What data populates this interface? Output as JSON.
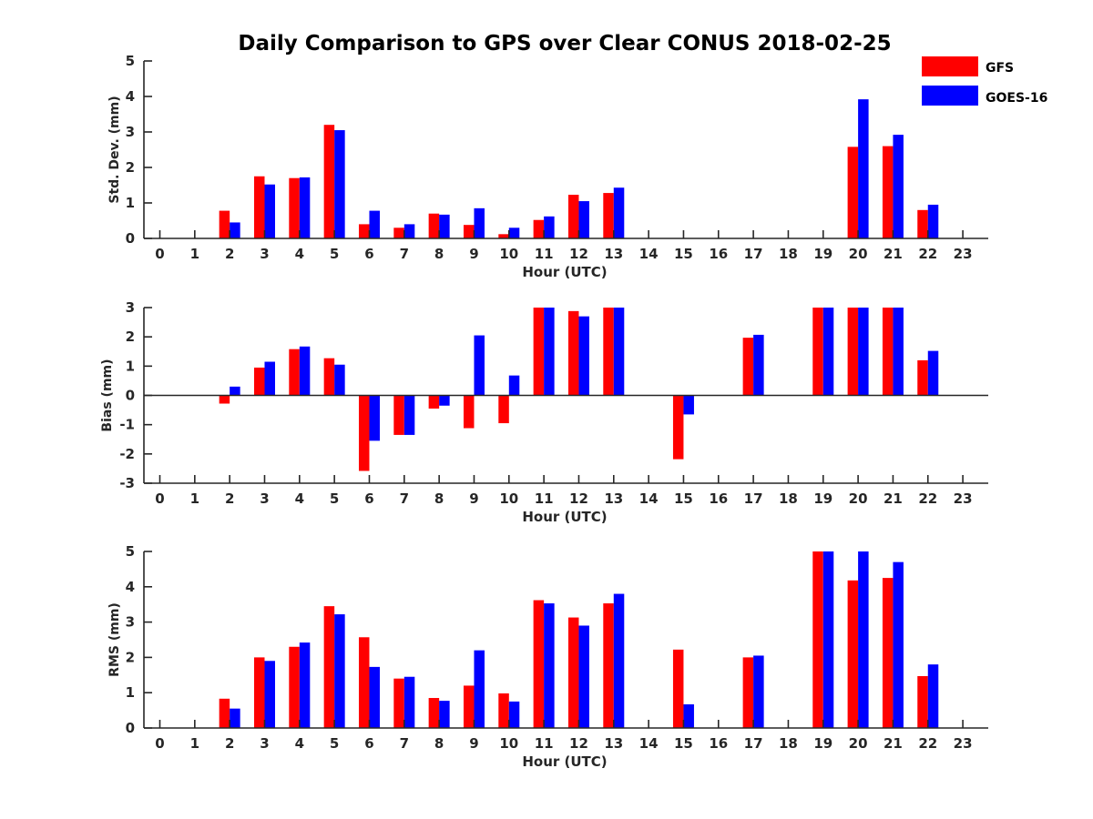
{
  "colors": {
    "gfs": "#ff0000",
    "goes": "#0000ff",
    "axis": "#262626"
  },
  "chart_data": {
    "type": "bar",
    "title": "Daily Comparison to GPS over Clear CONUS 2018-02-25",
    "legend": {
      "placement": "top-right",
      "entries": [
        "GFS",
        "GOES-16"
      ]
    },
    "categories": [
      "0",
      "1",
      "2",
      "3",
      "4",
      "5",
      "6",
      "7",
      "8",
      "9",
      "10",
      "11",
      "12",
      "13",
      "14",
      "15",
      "16",
      "17",
      "18",
      "19",
      "20",
      "21",
      "22",
      "23"
    ],
    "panels": [
      {
        "key": "std",
        "ylabel": "Std. Dev. (mm)",
        "xlabel": "Hour (UTC)",
        "ylim": [
          0,
          5
        ],
        "yticks": [
          "0",
          "1",
          "2",
          "3",
          "4",
          "5"
        ],
        "series": [
          {
            "name": "GFS",
            "values": [
              null,
              null,
              0.78,
              1.75,
              1.7,
              3.2,
              0.4,
              0.3,
              0.7,
              0.38,
              0.12,
              0.52,
              1.23,
              1.28,
              null,
              null,
              null,
              null,
              null,
              null,
              2.58,
              2.6,
              0.8,
              null
            ]
          },
          {
            "name": "GOES-16",
            "values": [
              null,
              null,
              0.45,
              1.52,
              1.72,
              3.05,
              0.78,
              0.4,
              0.67,
              0.85,
              0.3,
              0.62,
              1.05,
              1.43,
              null,
              null,
              null,
              null,
              null,
              null,
              3.92,
              2.92,
              0.95,
              null
            ]
          }
        ]
      },
      {
        "key": "bias",
        "ylabel": "Bias (mm)",
        "xlabel": "Hour (UTC)",
        "ylim": [
          -3,
          3
        ],
        "yticks": [
          "-3",
          "-2",
          "-1",
          "0",
          "1",
          "2",
          "3"
        ],
        "series": [
          {
            "name": "GFS",
            "values": [
              null,
              null,
              -0.28,
              0.95,
              1.58,
              1.27,
              -2.58,
              -1.35,
              -0.45,
              -1.12,
              -0.95,
              3.0,
              2.88,
              3.0,
              null,
              -2.18,
              null,
              1.97,
              null,
              3.0,
              3.0,
              3.0,
              1.2,
              null
            ]
          },
          {
            "name": "GOES-16",
            "values": [
              null,
              null,
              0.3,
              1.15,
              1.67,
              1.05,
              -1.55,
              -1.35,
              -0.35,
              2.05,
              0.68,
              3.0,
              2.7,
              3.0,
              null,
              -0.65,
              null,
              2.07,
              null,
              3.0,
              3.0,
              3.0,
              1.52,
              null
            ]
          }
        ]
      },
      {
        "key": "rms",
        "ylabel": "RMS (mm)",
        "xlabel": "Hour (UTC)",
        "ylim": [
          0,
          5
        ],
        "yticks": [
          "0",
          "1",
          "2",
          "3",
          "4",
          "5"
        ],
        "series": [
          {
            "name": "GFS",
            "values": [
              null,
              null,
              0.83,
              2.0,
              2.3,
              3.45,
              2.57,
              1.4,
              0.85,
              1.2,
              0.98,
              3.62,
              3.13,
              3.53,
              null,
              2.22,
              null,
              2.0,
              null,
              5.0,
              4.18,
              4.25,
              1.47,
              null
            ]
          },
          {
            "name": "GOES-16",
            "values": [
              null,
              null,
              0.55,
              1.9,
              2.42,
              3.22,
              1.73,
              1.45,
              0.77,
              2.2,
              0.75,
              3.53,
              2.9,
              3.8,
              null,
              0.67,
              null,
              2.05,
              null,
              5.0,
              5.0,
              4.7,
              1.8,
              null
            ]
          }
        ]
      }
    ]
  }
}
